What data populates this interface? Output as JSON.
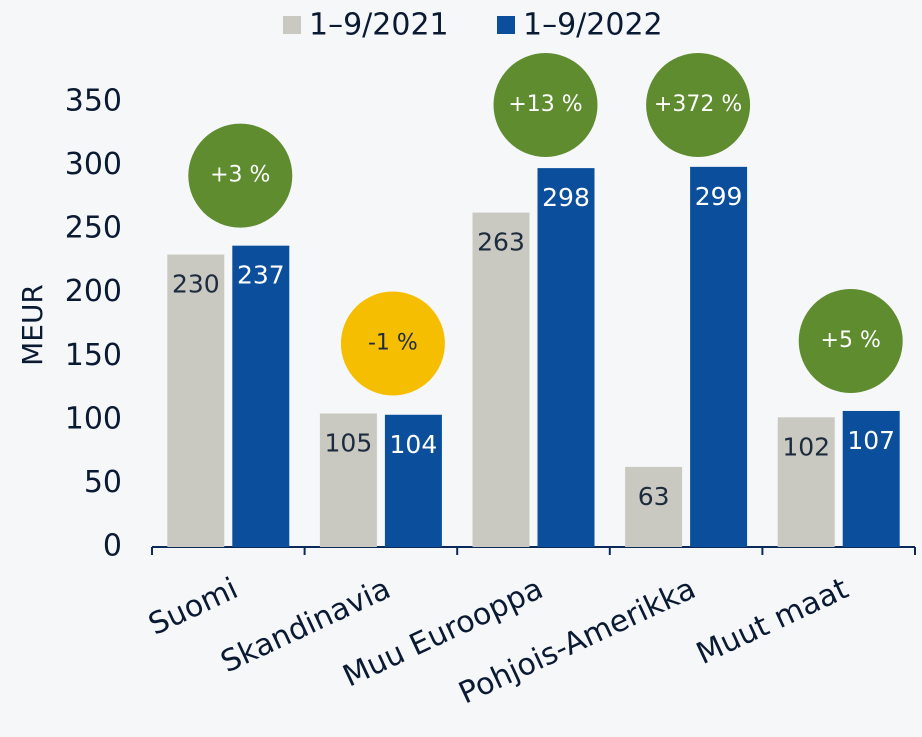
{
  "chart_data": {
    "type": "bar",
    "y_label": "MEUR",
    "categories": [
      "Suomi",
      "Skandinavia",
      "Muu Eurooppa",
      "Pohjois-Amerikka",
      "Muut maat"
    ],
    "series": [
      {
        "name": "1–9/2021",
        "color": "#c9c8c1",
        "label_color": "#1d2b3f",
        "values": [
          230,
          105,
          263,
          63,
          102
        ]
      },
      {
        "name": "1–9/2022",
        "color": "#0b4f9c",
        "label_color": "#ffffff",
        "values": [
          237,
          104,
          298,
          299,
          107
        ]
      }
    ],
    "annotations": [
      {
        "text": "+3 %",
        "color": "#5e8c2f",
        "text_color": "#ffffff"
      },
      {
        "text": "-1 %",
        "color": "#f6be00",
        "text_color": "#1d2b3f"
      },
      {
        "text": "+13 %",
        "color": "#5e8c2f",
        "text_color": "#ffffff"
      },
      {
        "text": "+372 %",
        "color": "#5e8c2f",
        "text_color": "#ffffff"
      },
      {
        "text": "+5 %",
        "color": "#5e8c2f",
        "text_color": "#ffffff"
      }
    ],
    "ylim": [
      0,
      350
    ],
    "yticks": [
      0,
      50,
      100,
      150,
      200,
      250,
      300,
      350
    ],
    "legend": "top"
  }
}
